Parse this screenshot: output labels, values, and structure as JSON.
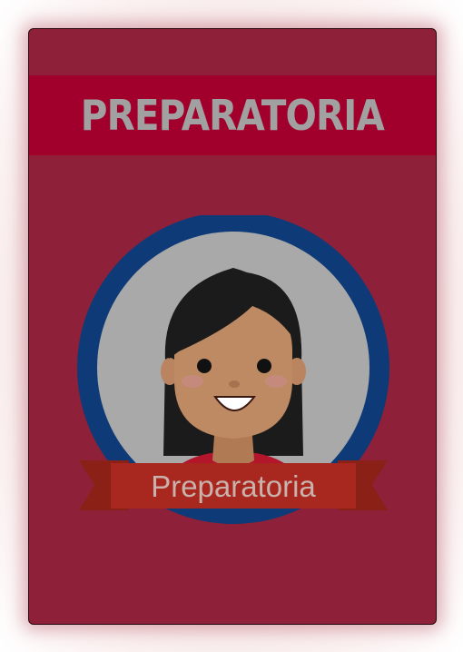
{
  "card": {
    "title": "PREPARATORIA",
    "badge_label": "Preparatoria",
    "avatar_icon": "student-girl-avatar-icon"
  },
  "colors": {
    "card_bg": "#8e2139",
    "banner_bg": "#a2002c",
    "title_text": "#a1a1a1",
    "badge_ring": "#0e3a78",
    "badge_inner": "#a9a9a9",
    "ribbon": "#a8271e",
    "ribbon_text": "#c9b2ac"
  }
}
